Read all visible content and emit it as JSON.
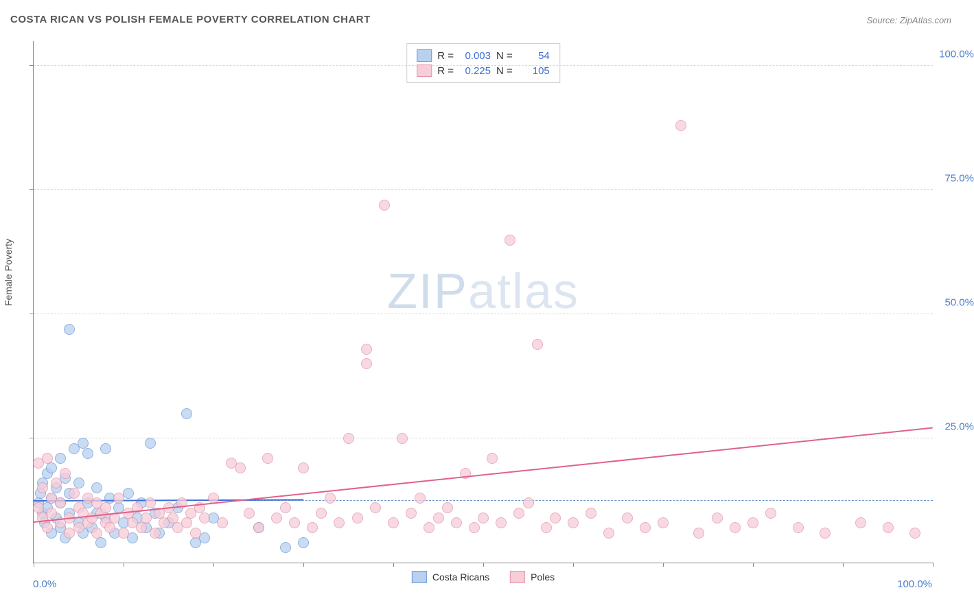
{
  "title": "COSTA RICAN VS POLISH FEMALE POVERTY CORRELATION CHART",
  "source": "Source: ZipAtlas.com",
  "watermark": {
    "part1": "ZIP",
    "part2": "atlas"
  },
  "y_axis_title": "Female Poverty",
  "axes": {
    "xlim": [
      0,
      100
    ],
    "ylim": [
      0,
      105
    ],
    "x_min_label": "0.0%",
    "x_max_label": "100.0%",
    "x_ticks": [
      0,
      10,
      20,
      30,
      40,
      50,
      60,
      70,
      80,
      90,
      100
    ],
    "y_ticks": [
      25,
      50,
      75,
      100
    ],
    "y_tick_labels": [
      "25.0%",
      "50.0%",
      "75.0%",
      "100.0%"
    ],
    "grid_color": "#d8d8d8"
  },
  "avg_reference_y": 12.5,
  "series": [
    {
      "id": "costa_ricans",
      "label": "Costa Ricans",
      "fill": "#b9d1ef",
      "stroke": "#6b9ad6",
      "r_label": "R =",
      "r": "0.003",
      "n_label": "N =",
      "n": "54",
      "trend": {
        "x1": 0,
        "y1": 12.3,
        "x2": 30,
        "y2": 12.5,
        "color": "#3b6fd6"
      },
      "points": [
        [
          0.5,
          12
        ],
        [
          0.8,
          14
        ],
        [
          1,
          10
        ],
        [
          1,
          16
        ],
        [
          1.2,
          8
        ],
        [
          1.5,
          18
        ],
        [
          1.5,
          11
        ],
        [
          2,
          6
        ],
        [
          2,
          19
        ],
        [
          2,
          13
        ],
        [
          2.5,
          15
        ],
        [
          2.5,
          9
        ],
        [
          3,
          21
        ],
        [
          3,
          12
        ],
        [
          3,
          7
        ],
        [
          3.5,
          17
        ],
        [
          3.5,
          5
        ],
        [
          4,
          47
        ],
        [
          4,
          14
        ],
        [
          4,
          10
        ],
        [
          4.5,
          23
        ],
        [
          5,
          8
        ],
        [
          5,
          16
        ],
        [
          5.5,
          6
        ],
        [
          5.5,
          24
        ],
        [
          6,
          12
        ],
        [
          6,
          22
        ],
        [
          6.5,
          7
        ],
        [
          7,
          10
        ],
        [
          7,
          15
        ],
        [
          7.5,
          4
        ],
        [
          8,
          23
        ],
        [
          8,
          9
        ],
        [
          8.5,
          13
        ],
        [
          9,
          6
        ],
        [
          9.5,
          11
        ],
        [
          10,
          8
        ],
        [
          10.5,
          14
        ],
        [
          11,
          5
        ],
        [
          11.5,
          9
        ],
        [
          12,
          12
        ],
        [
          12.5,
          7
        ],
        [
          13,
          24
        ],
        [
          13.5,
          10
        ],
        [
          14,
          6
        ],
        [
          15,
          8
        ],
        [
          16,
          11
        ],
        [
          17,
          30
        ],
        [
          18,
          4
        ],
        [
          19,
          5
        ],
        [
          20,
          9
        ],
        [
          25,
          7
        ],
        [
          28,
          3
        ],
        [
          30,
          4
        ]
      ]
    },
    {
      "id": "poles",
      "label": "Poles",
      "fill": "#f7cdd8",
      "stroke": "#e294ab",
      "r_label": "R =",
      "r": "0.225",
      "n_label": "N =",
      "n": "105",
      "trend": {
        "x1": 0,
        "y1": 8,
        "x2": 100,
        "y2": 27,
        "color": "#e0628a"
      },
      "points": [
        [
          0.5,
          11
        ],
        [
          0.5,
          20
        ],
        [
          1,
          9
        ],
        [
          1,
          15
        ],
        [
          1.5,
          21
        ],
        [
          1.5,
          7
        ],
        [
          2,
          13
        ],
        [
          2,
          10
        ],
        [
          2.5,
          16
        ],
        [
          3,
          8
        ],
        [
          3,
          12
        ],
        [
          3.5,
          18
        ],
        [
          4,
          9
        ],
        [
          4,
          6
        ],
        [
          4.5,
          14
        ],
        [
          5,
          11
        ],
        [
          5,
          7
        ],
        [
          5.5,
          10
        ],
        [
          6,
          8
        ],
        [
          6,
          13
        ],
        [
          6.5,
          9
        ],
        [
          7,
          12
        ],
        [
          7,
          6
        ],
        [
          7.5,
          10
        ],
        [
          8,
          8
        ],
        [
          8,
          11
        ],
        [
          8.5,
          7
        ],
        [
          9,
          9
        ],
        [
          9.5,
          13
        ],
        [
          10,
          6
        ],
        [
          10.5,
          10
        ],
        [
          11,
          8
        ],
        [
          11.5,
          11
        ],
        [
          12,
          7
        ],
        [
          12.5,
          9
        ],
        [
          13,
          12
        ],
        [
          13.5,
          6
        ],
        [
          14,
          10
        ],
        [
          14.5,
          8
        ],
        [
          15,
          11
        ],
        [
          15.5,
          9
        ],
        [
          16,
          7
        ],
        [
          16.5,
          12
        ],
        [
          17,
          8
        ],
        [
          17.5,
          10
        ],
        [
          18,
          6
        ],
        [
          18.5,
          11
        ],
        [
          19,
          9
        ],
        [
          20,
          13
        ],
        [
          21,
          8
        ],
        [
          22,
          20
        ],
        [
          23,
          19
        ],
        [
          24,
          10
        ],
        [
          25,
          7
        ],
        [
          26,
          21
        ],
        [
          27,
          9
        ],
        [
          28,
          11
        ],
        [
          29,
          8
        ],
        [
          30,
          19
        ],
        [
          31,
          7
        ],
        [
          32,
          10
        ],
        [
          33,
          13
        ],
        [
          34,
          8
        ],
        [
          35,
          25
        ],
        [
          36,
          9
        ],
        [
          37,
          43
        ],
        [
          37,
          40
        ],
        [
          38,
          11
        ],
        [
          39,
          72
        ],
        [
          40,
          8
        ],
        [
          41,
          25
        ],
        [
          42,
          10
        ],
        [
          43,
          13
        ],
        [
          44,
          7
        ],
        [
          45,
          9
        ],
        [
          46,
          11
        ],
        [
          47,
          8
        ],
        [
          48,
          18
        ],
        [
          49,
          7
        ],
        [
          50,
          9
        ],
        [
          51,
          21
        ],
        [
          52,
          8
        ],
        [
          53,
          65
        ],
        [
          54,
          10
        ],
        [
          55,
          12
        ],
        [
          56,
          44
        ],
        [
          57,
          7
        ],
        [
          58,
          9
        ],
        [
          60,
          8
        ],
        [
          62,
          10
        ],
        [
          64,
          6
        ],
        [
          66,
          9
        ],
        [
          68,
          7
        ],
        [
          70,
          8
        ],
        [
          72,
          88
        ],
        [
          74,
          6
        ],
        [
          76,
          9
        ],
        [
          78,
          7
        ],
        [
          80,
          8
        ],
        [
          82,
          10
        ],
        [
          85,
          7
        ],
        [
          88,
          6
        ],
        [
          92,
          8
        ],
        [
          95,
          7
        ],
        [
          98,
          6
        ]
      ]
    }
  ],
  "legend_bottom": [
    {
      "label": "Costa Ricans",
      "fill": "#b9d1ef",
      "stroke": "#6b9ad6"
    },
    {
      "label": "Poles",
      "fill": "#f7cdd8",
      "stroke": "#e294ab"
    }
  ]
}
